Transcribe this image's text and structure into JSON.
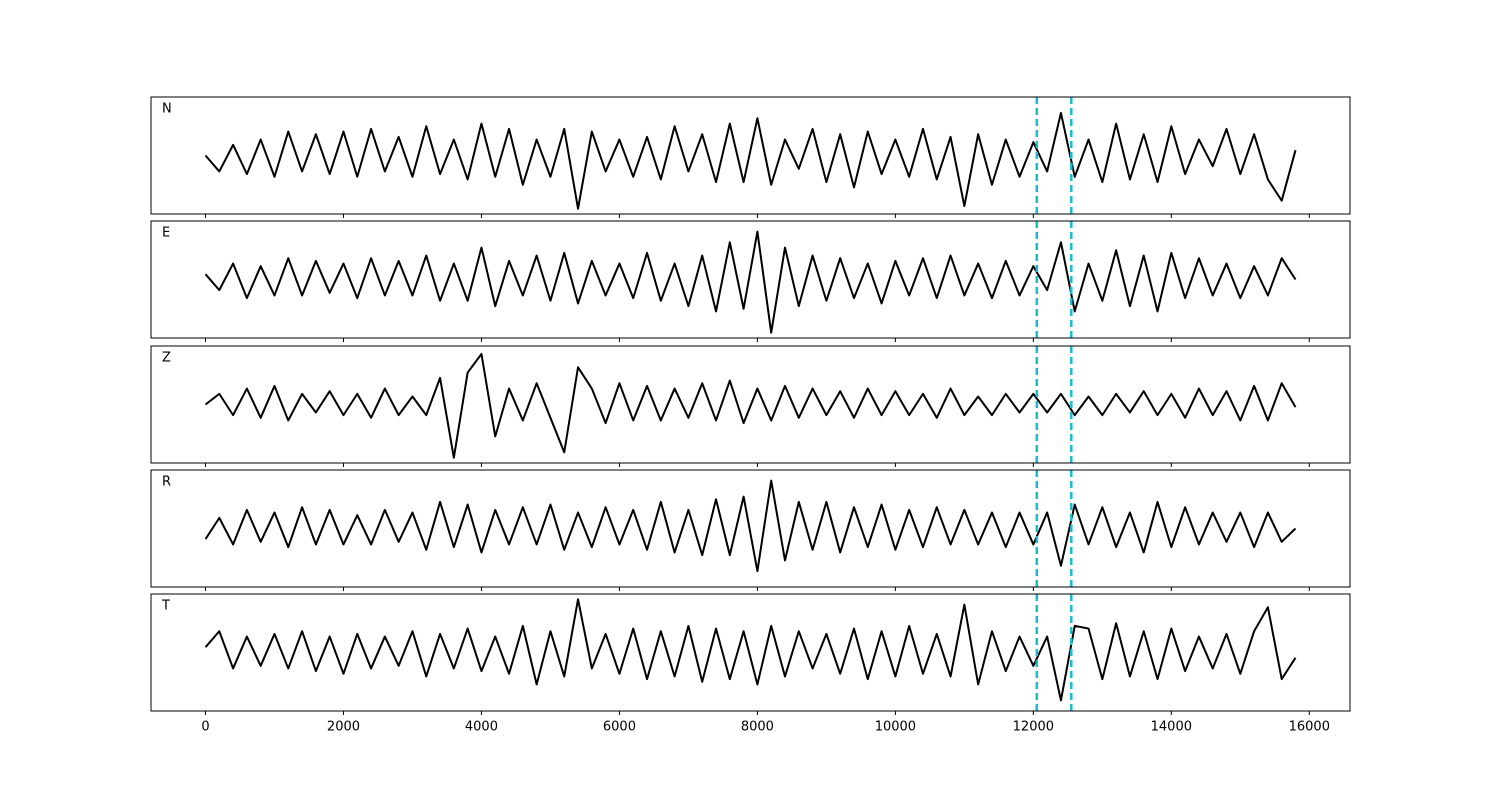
{
  "chart_data": [
    {
      "type": "line",
      "label": "N",
      "color": "#000000",
      "xlim": [
        -790,
        16590
      ],
      "ylim": [
        -1.1,
        1.1
      ],
      "vlines": [
        12050,
        12550
      ],
      "vline_color": "#17becf",
      "x": [
        0,
        200,
        400,
        600,
        800,
        1000,
        1200,
        1400,
        1600,
        1800,
        2000,
        2200,
        2400,
        2600,
        2800,
        3000,
        3200,
        3400,
        3600,
        3800,
        4000,
        4200,
        4400,
        4600,
        4800,
        5000,
        5200,
        5400,
        5600,
        5800,
        6000,
        6200,
        6400,
        6600,
        6800,
        7000,
        7200,
        7400,
        7600,
        7800,
        8000,
        8200,
        8400,
        8600,
        8800,
        9000,
        9200,
        9400,
        9600,
        9800,
        10000,
        10200,
        10400,
        10600,
        10800,
        11000,
        11200,
        11400,
        11600,
        11800,
        12000,
        12200,
        12400,
        12600,
        12800,
        13000,
        13200,
        13400,
        13600,
        13800,
        14000,
        14200,
        14400,
        14600,
        14800,
        15000,
        15200,
        15400,
        15600,
        15800
      ],
      "values": [
        0,
        -0.3,
        0.2,
        -0.35,
        0.3,
        -0.4,
        0.45,
        -0.3,
        0.4,
        -0.35,
        0.45,
        -0.4,
        0.5,
        -0.3,
        0.35,
        -0.4,
        0.55,
        -0.35,
        0.3,
        -0.45,
        0.6,
        -0.4,
        0.5,
        -0.55,
        0.3,
        -0.4,
        0.5,
        -1.0,
        0.45,
        -0.3,
        0.3,
        -0.4,
        0.35,
        -0.45,
        0.55,
        -0.3,
        0.4,
        -0.5,
        0.6,
        -0.5,
        0.7,
        -0.55,
        0.3,
        -0.25,
        0.5,
        -0.5,
        0.4,
        -0.6,
        0.45,
        -0.35,
        0.3,
        -0.4,
        0.5,
        -0.45,
        0.35,
        -0.95,
        0.4,
        -0.55,
        0.3,
        -0.4,
        0.25,
        -0.3,
        0.8,
        -0.4,
        0.3,
        -0.5,
        0.6,
        -0.45,
        0.4,
        -0.5,
        0.55,
        -0.35,
        0.3,
        -0.2,
        0.5,
        -0.35,
        0.4,
        -0.45,
        -0.85,
        0.1
      ]
    },
    {
      "type": "line",
      "label": "E",
      "color": "#000000",
      "xlim": [
        -790,
        16590
      ],
      "ylim": [
        -1.1,
        1.1
      ],
      "vlines": [
        12050,
        12550
      ],
      "vline_color": "#17becf",
      "x": [
        0,
        200,
        400,
        600,
        800,
        1000,
        1200,
        1400,
        1600,
        1800,
        2000,
        2200,
        2400,
        2600,
        2800,
        3000,
        3200,
        3400,
        3600,
        3800,
        4000,
        4200,
        4400,
        4600,
        4800,
        5000,
        5200,
        5400,
        5600,
        5800,
        6000,
        6200,
        6400,
        6600,
        6800,
        7000,
        7200,
        7400,
        7600,
        7800,
        8000,
        8200,
        8400,
        8600,
        8800,
        9000,
        9200,
        9400,
        9600,
        9800,
        10000,
        10200,
        10400,
        10600,
        10800,
        11000,
        11200,
        11400,
        11600,
        11800,
        12000,
        12200,
        12400,
        12600,
        12800,
        13000,
        13200,
        13400,
        13600,
        13800,
        14000,
        14200,
        14400,
        14600,
        14800,
        15000,
        15200,
        15400,
        15600,
        15800
      ],
      "values": [
        0.1,
        -0.2,
        0.3,
        -0.35,
        0.25,
        -0.3,
        0.4,
        -0.3,
        0.35,
        -0.25,
        0.3,
        -0.35,
        0.4,
        -0.3,
        0.35,
        -0.3,
        0.45,
        -0.4,
        0.3,
        -0.4,
        0.6,
        -0.5,
        0.35,
        -0.3,
        0.45,
        -0.4,
        0.5,
        -0.45,
        0.35,
        -0.3,
        0.3,
        -0.35,
        0.5,
        -0.4,
        0.3,
        -0.5,
        0.45,
        -0.6,
        0.7,
        -0.55,
        0.9,
        -1.0,
        0.6,
        -0.5,
        0.45,
        -0.4,
        0.4,
        -0.35,
        0.3,
        -0.45,
        0.35,
        -0.3,
        0.4,
        -0.35,
        0.45,
        -0.3,
        0.3,
        -0.35,
        0.35,
        -0.3,
        0.25,
        -0.2,
        0.7,
        -0.6,
        0.3,
        -0.4,
        0.55,
        -0.5,
        0.45,
        -0.6,
        0.5,
        -0.35,
        0.4,
        -0.3,
        0.3,
        -0.35,
        0.25,
        -0.3,
        0.4,
        0.0
      ]
    },
    {
      "type": "line",
      "label": "Z",
      "color": "#000000",
      "xlim": [
        -790,
        16590
      ],
      "ylim": [
        -1.1,
        1.1
      ],
      "vlines": [
        12050,
        12550
      ],
      "vline_color": "#17becf",
      "x": [
        0,
        200,
        400,
        600,
        800,
        1000,
        1200,
        1400,
        1600,
        1800,
        2000,
        2200,
        2400,
        2600,
        2800,
        3000,
        3200,
        3400,
        3600,
        3800,
        4000,
        4200,
        4400,
        4600,
        4800,
        5000,
        5200,
        5400,
        5600,
        5800,
        6000,
        6200,
        6400,
        6600,
        6800,
        7000,
        7200,
        7400,
        7600,
        7800,
        8000,
        8200,
        8400,
        8600,
        8800,
        9000,
        9200,
        9400,
        9600,
        9800,
        10000,
        10200,
        10400,
        10600,
        10800,
        11000,
        11200,
        11400,
        11600,
        11800,
        12000,
        12200,
        12400,
        12600,
        12800,
        13000,
        13200,
        13400,
        13600,
        13800,
        14000,
        14200,
        14400,
        14600,
        14800,
        15000,
        15200,
        15400,
        15600,
        15800
      ],
      "values": [
        0,
        0.2,
        -0.2,
        0.3,
        -0.25,
        0.35,
        -0.3,
        0.2,
        -0.15,
        0.25,
        -0.2,
        0.2,
        -0.25,
        0.3,
        -0.2,
        0.15,
        -0.2,
        0.5,
        -1.0,
        0.6,
        0.95,
        -0.6,
        0.3,
        -0.3,
        0.4,
        -0.25,
        -0.9,
        0.7,
        0.3,
        -0.35,
        0.4,
        -0.3,
        0.35,
        -0.3,
        0.3,
        -0.25,
        0.4,
        -0.3,
        0.45,
        -0.35,
        0.3,
        -0.3,
        0.35,
        -0.25,
        0.3,
        -0.2,
        0.25,
        -0.25,
        0.3,
        -0.2,
        0.25,
        -0.2,
        0.2,
        -0.25,
        0.3,
        -0.2,
        0.15,
        -0.2,
        0.2,
        -0.15,
        0.2,
        -0.15,
        0.2,
        -0.2,
        0.15,
        -0.2,
        0.2,
        -0.15,
        0.25,
        -0.2,
        0.2,
        -0.25,
        0.3,
        -0.2,
        0.25,
        -0.3,
        0.35,
        -0.3,
        0.4,
        -0.05
      ]
    },
    {
      "type": "line",
      "label": "R",
      "color": "#000000",
      "xlim": [
        -790,
        16590
      ],
      "ylim": [
        -1.1,
        1.1
      ],
      "vlines": [
        12050,
        12550
      ],
      "vline_color": "#17becf",
      "x": [
        0,
        200,
        400,
        600,
        800,
        1000,
        1200,
        1400,
        1600,
        1800,
        2000,
        2200,
        2400,
        2600,
        2800,
        3000,
        3200,
        3400,
        3600,
        3800,
        4000,
        4200,
        4400,
        4600,
        4800,
        5000,
        5200,
        5400,
        5600,
        5800,
        6000,
        6200,
        6400,
        6600,
        6800,
        7000,
        7200,
        7400,
        7600,
        7800,
        8000,
        8200,
        8400,
        8600,
        8800,
        9000,
        9200,
        9400,
        9600,
        9800,
        10000,
        10200,
        10400,
        10600,
        10800,
        11000,
        11200,
        11400,
        11600,
        11800,
        12000,
        12200,
        12400,
        12600,
        12800,
        13000,
        13200,
        13400,
        13600,
        13800,
        14000,
        14200,
        14400,
        14600,
        14800,
        15000,
        15200,
        15400,
        15600,
        15800
      ],
      "values": [
        -0.2,
        0.2,
        -0.3,
        0.35,
        -0.25,
        0.3,
        -0.35,
        0.4,
        -0.3,
        0.35,
        -0.3,
        0.25,
        -0.3,
        0.35,
        -0.25,
        0.3,
        -0.4,
        0.5,
        -0.35,
        0.45,
        -0.45,
        0.35,
        -0.3,
        0.4,
        -0.3,
        0.45,
        -0.4,
        0.3,
        -0.35,
        0.4,
        -0.3,
        0.35,
        -0.4,
        0.5,
        -0.45,
        0.35,
        -0.5,
        0.55,
        -0.5,
        0.6,
        -0.8,
        0.9,
        -0.6,
        0.5,
        -0.4,
        0.5,
        -0.45,
        0.4,
        -0.35,
        0.45,
        -0.4,
        0.35,
        -0.35,
        0.4,
        -0.3,
        0.35,
        -0.3,
        0.3,
        -0.35,
        0.3,
        -0.3,
        0.3,
        -0.7,
        0.45,
        -0.3,
        0.4,
        -0.35,
        0.3,
        -0.45,
        0.5,
        -0.35,
        0.4,
        -0.3,
        0.3,
        -0.25,
        0.3,
        -0.35,
        0.3,
        -0.25,
        0.0
      ]
    },
    {
      "type": "line",
      "label": "T",
      "color": "#000000",
      "xlim": [
        -790,
        16590
      ],
      "ylim": [
        -1.1,
        1.1
      ],
      "vlines": [
        12050,
        12550
      ],
      "vline_color": "#17becf",
      "xticks": [
        0,
        2000,
        4000,
        6000,
        8000,
        10000,
        12000,
        14000,
        16000
      ],
      "x": [
        0,
        200,
        400,
        600,
        800,
        1000,
        1200,
        1400,
        1600,
        1800,
        2000,
        2200,
        2400,
        2600,
        2800,
        3000,
        3200,
        3400,
        3600,
        3800,
        4000,
        4200,
        4400,
        4600,
        4800,
        5000,
        5200,
        5400,
        5600,
        5800,
        6000,
        6200,
        6400,
        6600,
        6800,
        7000,
        7200,
        7400,
        7600,
        7800,
        8000,
        8200,
        8400,
        8600,
        8800,
        9000,
        9200,
        9400,
        9600,
        9800,
        10000,
        10200,
        10400,
        10600,
        10800,
        11000,
        11200,
        11400,
        11600,
        11800,
        12000,
        12200,
        12400,
        12600,
        12800,
        13000,
        13200,
        13400,
        13600,
        13800,
        14000,
        14200,
        14400,
        14600,
        14800,
        15000,
        15200,
        15400,
        15600,
        15800
      ],
      "values": [
        0.1,
        0.4,
        -0.3,
        0.3,
        -0.25,
        0.35,
        -0.3,
        0.4,
        -0.35,
        0.3,
        -0.4,
        0.35,
        -0.3,
        0.3,
        -0.25,
        0.4,
        -0.45,
        0.35,
        -0.3,
        0.45,
        -0.35,
        0.3,
        -0.4,
        0.5,
        -0.6,
        0.4,
        -0.45,
        1.0,
        -0.3,
        0.35,
        -0.4,
        0.45,
        -0.5,
        0.4,
        -0.45,
        0.5,
        -0.55,
        0.45,
        -0.5,
        0.4,
        -0.6,
        0.5,
        -0.45,
        0.4,
        -0.3,
        0.35,
        -0.4,
        0.45,
        -0.5,
        0.4,
        -0.45,
        0.5,
        -0.4,
        0.35,
        -0.45,
        0.9,
        -0.6,
        0.4,
        -0.35,
        0.3,
        -0.25,
        0.3,
        -0.9,
        0.5,
        0.45,
        -0.5,
        0.55,
        -0.45,
        0.4,
        -0.5,
        0.45,
        -0.35,
        0.3,
        -0.3,
        0.35,
        -0.4,
        0.4,
        0.85,
        -0.5,
        -0.1
      ]
    }
  ]
}
